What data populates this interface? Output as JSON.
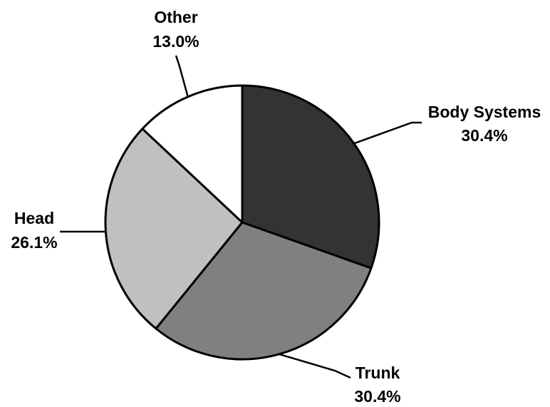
{
  "chart_data": {
    "type": "pie",
    "slices": [
      {
        "label": "Body Systems",
        "value": 30.4,
        "value_label": "30.4%",
        "color": "#333333"
      },
      {
        "label": "Trunk",
        "value": 30.4,
        "value_label": "30.4%",
        "color": "#808080"
      },
      {
        "label": "Head",
        "value": 26.1,
        "value_label": "26.1%",
        "color": "#c0c0c0"
      },
      {
        "label": "Other",
        "value": 13.0,
        "value_label": "13.0%",
        "color": "#ffffff"
      }
    ],
    "start": "12 o'clock",
    "direction": "clockwise",
    "legend": "none"
  }
}
